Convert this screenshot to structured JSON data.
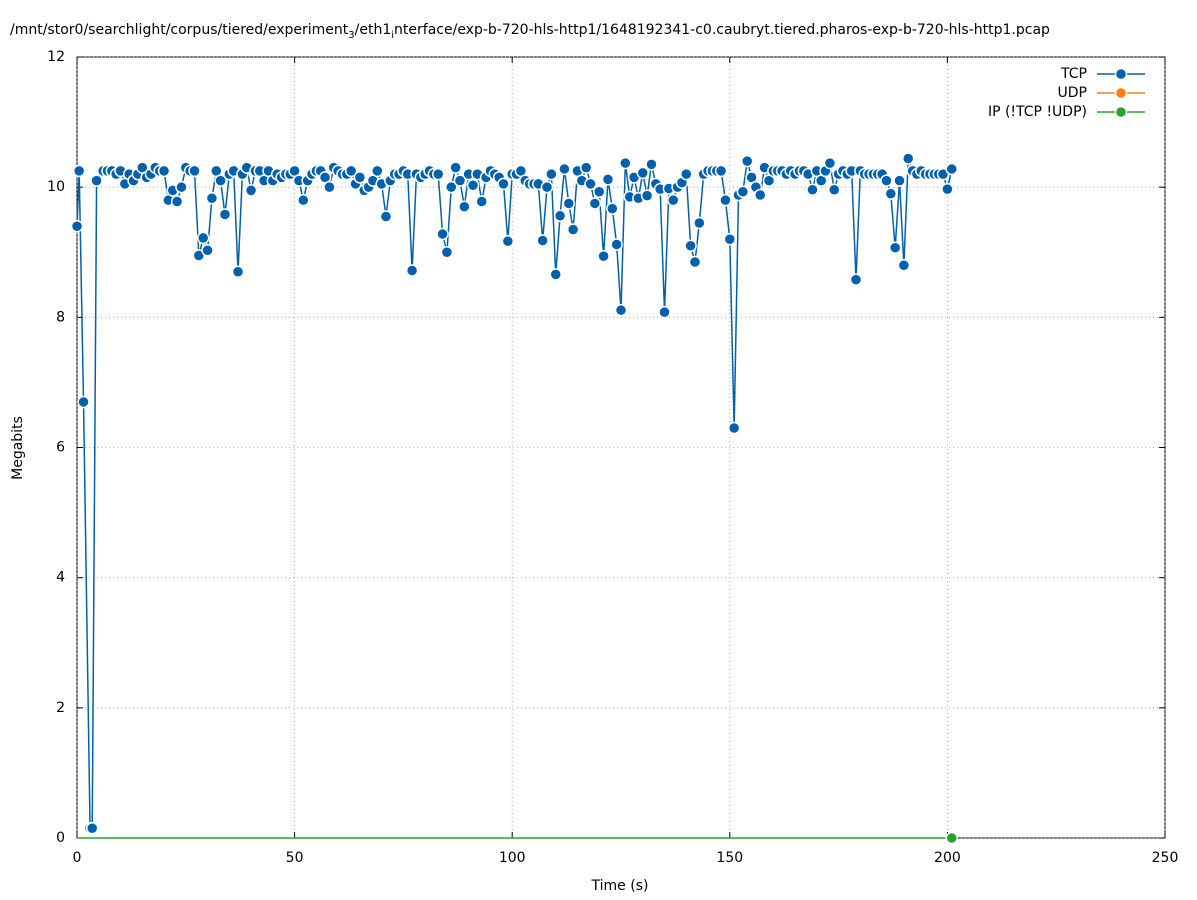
{
  "chart_data": {
    "type": "line",
    "title_parts": [
      "/mnt/stor0/searchlight/corpus/tiered/experiment",
      "3",
      "/eth1",
      "i",
      "nterface/exp-b-720-hls-http1/1648192341-c0.caubryt.tiered.pharos-exp-b-720-hls-http1.pcap"
    ],
    "xlabel": "Time (s)",
    "ylabel": "Megabits",
    "xlim": [
      0,
      250
    ],
    "xticks": [
      0,
      50,
      100,
      150,
      200,
      250
    ],
    "ylim": [
      0,
      12
    ],
    "yticks": [
      0,
      2,
      4,
      6,
      8,
      10,
      12
    ],
    "grid": true,
    "legend": "top-right",
    "x": [
      0,
      0.5,
      1.5,
      3,
      3.5,
      4.5,
      6,
      7,
      8,
      9,
      10,
      11,
      12,
      13,
      14,
      15,
      16,
      17,
      18,
      19,
      20,
      21,
      22,
      23,
      24,
      25,
      26,
      27,
      28,
      29,
      30,
      31,
      32,
      33,
      34,
      35,
      36,
      37,
      38,
      39,
      40,
      41,
      42,
      43,
      44,
      45,
      46,
      47,
      48,
      49,
      50,
      51,
      52,
      53,
      54,
      55,
      56,
      57,
      58,
      59,
      60,
      61,
      62,
      63,
      64,
      65,
      66,
      67,
      68,
      69,
      70,
      71,
      72,
      73,
      74,
      75,
      76,
      77,
      78,
      79,
      80,
      81,
      82,
      83,
      84,
      85,
      86,
      87,
      88,
      89,
      90,
      91,
      92,
      93,
      94,
      95,
      96,
      97,
      98,
      99,
      100,
      101,
      102,
      103,
      104,
      105,
      106,
      107,
      108,
      109,
      110,
      111,
      112,
      113,
      114,
      115,
      116,
      117,
      118,
      119,
      120,
      121,
      122,
      123,
      124,
      125,
      126,
      127,
      128,
      129,
      130,
      131,
      132,
      133,
      134,
      135,
      136,
      137,
      138,
      139,
      140,
      141,
      142,
      143,
      144,
      145,
      146,
      147,
      148,
      149,
      150,
      151,
      152,
      153,
      154,
      155,
      156,
      157,
      158,
      159,
      160,
      161,
      162,
      163,
      164,
      165,
      166,
      167,
      168,
      169,
      170,
      171,
      172,
      173,
      174,
      175,
      176,
      177,
      178,
      179,
      180,
      181,
      182,
      183,
      184,
      185,
      186,
      187,
      188,
      189,
      190,
      191,
      192,
      193,
      194,
      195,
      196,
      197,
      198,
      199,
      200,
      201
    ],
    "series": [
      {
        "name": "TCP",
        "color": "#0060ad",
        "values": [
          9.4,
          10.25,
          6.7,
          0.15,
          0.15,
          10.1,
          10.25,
          10.25,
          10.25,
          10.2,
          10.25,
          10.05,
          10.2,
          10.1,
          10.2,
          10.3,
          10.15,
          10.2,
          10.3,
          10.25,
          10.25,
          9.8,
          9.95,
          9.78,
          10.0,
          10.3,
          10.25,
          10.25,
          8.95,
          9.22,
          9.03,
          9.83,
          10.25,
          10.1,
          9.58,
          10.2,
          10.25,
          8.7,
          10.2,
          10.3,
          9.95,
          10.25,
          10.25,
          10.1,
          10.25,
          10.1,
          10.2,
          10.15,
          10.2,
          10.2,
          10.25,
          10.1,
          9.8,
          10.1,
          10.2,
          10.25,
          10.25,
          10.15,
          10.0,
          10.3,
          10.25,
          10.2,
          10.2,
          10.25,
          10.05,
          10.15,
          9.95,
          10.0,
          10.1,
          10.25,
          10.05,
          9.55,
          10.1,
          10.2,
          10.2,
          10.25,
          10.2,
          8.72,
          10.2,
          10.15,
          10.2,
          10.25,
          10.2,
          10.2,
          9.28,
          9.0,
          10.0,
          10.3,
          10.1,
          9.7,
          10.2,
          10.03,
          10.2,
          9.78,
          10.15,
          10.25,
          10.2,
          10.15,
          10.05,
          9.17,
          10.2,
          10.2,
          10.25,
          10.1,
          10.05,
          10.05,
          10.05,
          9.18,
          10.0,
          10.2,
          8.66,
          9.56,
          10.28,
          9.75,
          9.35,
          10.25,
          10.1,
          10.3,
          10.05,
          9.75,
          9.93,
          8.94,
          10.12,
          9.67,
          9.12,
          8.11,
          10.37,
          9.85,
          10.15,
          9.83,
          10.22,
          9.87,
          10.35,
          10.05,
          9.97,
          8.08,
          9.98,
          9.8,
          10.0,
          10.07,
          10.2,
          9.1,
          8.85,
          9.45,
          10.2,
          10.25,
          10.25,
          10.25,
          10.25,
          9.8,
          9.2,
          6.3,
          9.88,
          9.93,
          10.4,
          10.15,
          10.0,
          9.88,
          10.3,
          10.1,
          10.25,
          10.25,
          10.25,
          10.2,
          10.25,
          10.2,
          10.25,
          10.25,
          10.2,
          9.96,
          10.25,
          10.1,
          10.25,
          10.37,
          9.96,
          10.2,
          10.25,
          10.2,
          10.25,
          8.58,
          10.25,
          10.2,
          10.2,
          10.2,
          10.2,
          10.2,
          10.1,
          9.9,
          9.07,
          10.1,
          8.8,
          10.44,
          10.25,
          10.2,
          10.25,
          10.2,
          10.2,
          10.2,
          10.2,
          10.2,
          9.97,
          10.28
        ]
      },
      {
        "name": "UDP",
        "color": "#ff7f0e",
        "values": [
          null,
          null,
          null,
          null,
          null,
          null,
          null,
          null,
          null,
          null,
          null,
          null,
          null,
          null,
          null,
          null,
          null,
          null,
          null,
          null,
          null,
          null,
          null,
          null,
          null,
          null,
          null,
          null,
          null,
          null,
          null,
          null,
          null,
          null,
          null,
          null,
          null,
          null,
          null,
          null,
          null,
          null,
          null,
          null,
          null,
          null,
          null,
          null,
          null,
          null,
          null,
          null,
          null,
          null,
          null,
          null,
          null,
          null,
          null,
          null,
          null,
          null,
          null,
          null,
          null,
          null,
          null,
          null,
          null,
          null,
          null,
          null,
          null,
          null,
          null,
          null,
          null,
          null,
          null,
          null,
          null,
          null,
          null,
          null,
          null,
          null,
          null,
          null,
          null,
          null,
          null,
          null,
          null,
          null,
          null,
          null,
          null,
          null,
          null,
          null,
          null,
          null,
          null,
          null,
          null,
          null,
          null,
          null,
          null,
          null,
          null,
          null,
          null,
          null,
          null,
          null,
          null,
          null,
          null,
          null,
          null,
          null,
          null,
          null,
          null,
          null,
          null,
          null,
          null,
          null,
          null,
          null,
          null,
          null,
          null,
          null,
          null,
          null,
          null,
          null,
          null,
          null,
          null,
          null,
          null,
          null,
          null,
          null,
          null,
          null,
          null,
          null,
          null,
          null,
          null,
          null,
          null,
          null,
          null,
          null,
          null,
          null,
          null,
          null,
          null,
          null,
          null,
          null,
          null,
          null,
          null,
          null,
          null,
          null,
          null,
          null,
          null,
          null,
          null,
          null,
          null,
          null,
          null,
          null,
          null,
          null,
          null,
          null,
          null,
          null,
          null,
          null,
          null,
          null,
          null,
          null,
          null,
          null,
          null,
          null,
          null,
          null
        ]
      },
      {
        "name": "IP (!TCP  !UDP)",
        "color": "#2ca02c",
        "values": [
          0,
          0,
          0,
          0,
          0,
          0,
          0,
          0,
          0,
          0,
          0,
          0,
          0,
          0,
          0,
          0,
          0,
          0,
          0,
          0,
          0,
          0,
          0,
          0,
          0,
          0,
          0,
          0,
          0,
          0,
          0,
          0,
          0,
          0,
          0,
          0,
          0,
          0,
          0,
          0,
          0,
          0,
          0,
          0,
          0,
          0,
          0,
          0,
          0,
          0,
          0,
          0,
          0,
          0,
          0,
          0,
          0,
          0,
          0,
          0,
          0,
          0,
          0,
          0,
          0,
          0,
          0,
          0,
          0,
          0,
          0,
          0,
          0,
          0,
          0,
          0,
          0,
          0,
          0,
          0,
          0,
          0,
          0,
          0,
          0,
          0,
          0,
          0,
          0,
          0,
          0,
          0,
          0,
          0,
          0,
          0,
          0,
          0,
          0,
          0,
          0,
          0,
          0,
          0,
          0,
          0,
          0,
          0,
          0,
          0,
          0,
          0,
          0,
          0,
          0,
          0,
          0,
          0,
          0,
          0,
          0,
          0,
          0,
          0,
          0,
          0,
          0,
          0,
          0,
          0,
          0,
          0,
          0,
          0,
          0,
          0,
          0,
          0,
          0,
          0,
          0,
          0,
          0,
          0,
          0,
          0,
          0,
          0,
          0,
          0,
          0,
          0,
          0,
          0,
          0,
          0,
          0,
          0,
          0,
          0,
          0,
          0,
          0,
          0,
          0,
          0,
          0,
          0,
          0,
          0,
          0,
          0,
          0,
          0,
          0,
          0,
          0,
          0,
          0,
          0,
          0,
          0,
          0,
          0,
          0,
          0,
          0,
          0,
          0,
          0,
          0,
          0,
          0,
          0,
          0,
          0,
          0,
          0,
          0,
          0,
          0,
          0
        ]
      }
    ]
  }
}
